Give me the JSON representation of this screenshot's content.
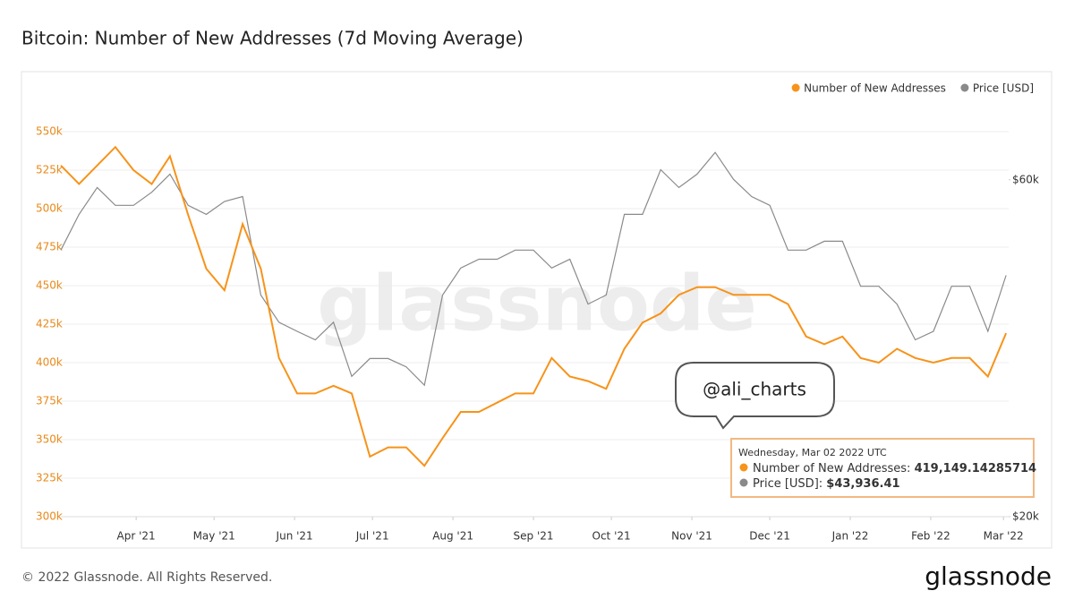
{
  "chart_data": {
    "type": "line",
    "title": "Bitcoin: Number of New Addresses (7d Moving Average)",
    "watermark": "glassnode",
    "annotation": "@ali_charts",
    "footer": "© 2022 Glassnode. All Rights Reserved.",
    "logo": "glassnode",
    "tooltip": {
      "date": "Wednesday, Mar 02 2022 UTC",
      "rows": [
        {
          "label": "Number of New Addresses:",
          "value": "419,149.14285714"
        },
        {
          "label": "Price [USD]:",
          "value": "$43,936.41"
        }
      ]
    },
    "legend": "top-right",
    "grid": true,
    "y2log": true,
    "xlim": [
      "2021-03-03",
      "2022-03-03"
    ],
    "xticks": [
      {
        "value": "2021-04-01",
        "label": "Apr '21"
      },
      {
        "value": "2021-05-01",
        "label": "May '21"
      },
      {
        "value": "2021-06-01",
        "label": "Jun '21"
      },
      {
        "value": "2021-07-01",
        "label": "Jul '21"
      },
      {
        "value": "2021-08-01",
        "label": "Aug '21"
      },
      {
        "value": "2021-09-01",
        "label": "Sep '21"
      },
      {
        "value": "2021-10-01",
        "label": "Oct '21"
      },
      {
        "value": "2021-11-01",
        "label": "Nov '21"
      },
      {
        "value": "2021-12-01",
        "label": "Dec '21"
      },
      {
        "value": "2022-01-01",
        "label": "Jan '22"
      },
      {
        "value": "2022-02-01",
        "label": "Feb '22"
      },
      {
        "value": "2022-03-01",
        "label": "Mar '22"
      }
    ],
    "ylim": [
      300000,
      550000
    ],
    "yticks": [
      {
        "value": 300000,
        "label": "300k"
      },
      {
        "value": 325000,
        "label": "325k"
      },
      {
        "value": 350000,
        "label": "350k"
      },
      {
        "value": 375000,
        "label": "375k"
      },
      {
        "value": 400000,
        "label": "400k"
      },
      {
        "value": 425000,
        "label": "425k"
      },
      {
        "value": 450000,
        "label": "450k"
      },
      {
        "value": 475000,
        "label": "475k"
      },
      {
        "value": 500000,
        "label": "500k"
      },
      {
        "value": 525000,
        "label": "525k"
      },
      {
        "value": 550000,
        "label": "550k"
      }
    ],
    "y2lim": [
      20000,
      70200
    ],
    "y2ticks": [
      {
        "value": 20000,
        "label": "$20k"
      },
      {
        "value": 60000,
        "label": "$60k"
      }
    ],
    "x": [
      "2021-03-03",
      "2021-03-10",
      "2021-03-17",
      "2021-03-24",
      "2021-03-31",
      "2021-04-07",
      "2021-04-14",
      "2021-04-21",
      "2021-04-28",
      "2021-05-05",
      "2021-05-12",
      "2021-05-19",
      "2021-05-26",
      "2021-06-02",
      "2021-06-09",
      "2021-06-16",
      "2021-06-23",
      "2021-06-30",
      "2021-07-07",
      "2021-07-14",
      "2021-07-21",
      "2021-07-28",
      "2021-08-04",
      "2021-08-11",
      "2021-08-18",
      "2021-08-25",
      "2021-09-01",
      "2021-09-08",
      "2021-09-15",
      "2021-09-22",
      "2021-09-29",
      "2021-10-06",
      "2021-10-13",
      "2021-10-20",
      "2021-10-27",
      "2021-11-03",
      "2021-11-10",
      "2021-11-17",
      "2021-11-24",
      "2021-12-01",
      "2021-12-08",
      "2021-12-15",
      "2021-12-22",
      "2021-12-29",
      "2022-01-05",
      "2022-01-12",
      "2022-01-19",
      "2022-01-26",
      "2022-02-02",
      "2022-02-09",
      "2022-02-16",
      "2022-02-23",
      "2022-03-02"
    ],
    "series": [
      {
        "name": "Number of New Addresses",
        "color": "#f7931a",
        "values": [
          528000,
          516000,
          528000,
          540000,
          525000,
          516000,
          534000,
          496000,
          461000,
          447000,
          490000,
          461000,
          403000,
          380000,
          380000,
          385000,
          380000,
          339000,
          345000,
          345000,
          333000,
          351000,
          368000,
          368000,
          374000,
          380000,
          380000,
          403000,
          391000,
          388000,
          383000,
          409000,
          426000,
          432000,
          444000,
          449000,
          449000,
          444000,
          444000,
          444000,
          438000,
          417000,
          412000,
          417000,
          403000,
          400000,
          409000,
          403000,
          400000,
          403000,
          403000,
          391000,
          419149.14285714
        ]
      },
      {
        "name": "Price [USD]",
        "color": "#8a8a8a",
        "axis": "y2",
        "values": [
          47700,
          53600,
          58500,
          55200,
          55200,
          57600,
          61100,
          55200,
          53600,
          55900,
          56800,
          41200,
          37700,
          36600,
          35600,
          37700,
          31600,
          33500,
          33500,
          32600,
          30700,
          41200,
          45000,
          46300,
          46300,
          47700,
          47700,
          45000,
          46300,
          40000,
          41200,
          53600,
          53600,
          62000,
          58500,
          61100,
          65600,
          60100,
          56800,
          55200,
          47700,
          47700,
          49100,
          49100,
          42400,
          42400,
          40000,
          35600,
          36600,
          42400,
          42400,
          36600,
          43936.41
        ]
      }
    ]
  }
}
